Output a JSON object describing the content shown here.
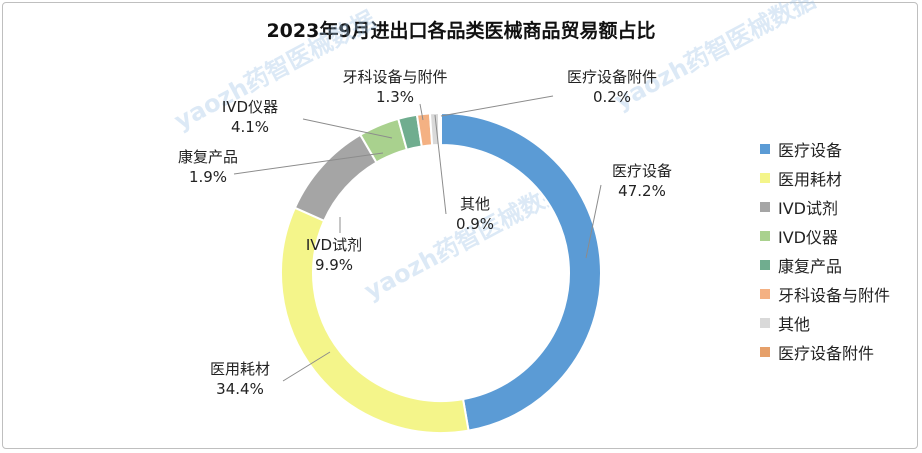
{
  "chart_data": {
    "type": "pie",
    "subtype": "donut",
    "title": "2023年9月进出口各品类医械商品贸易额占比",
    "legend_position": "right",
    "slices": [
      {
        "name": "医疗设备",
        "value": 47.2,
        "label": "47.2%",
        "color": "#5b9bd5"
      },
      {
        "name": "医用耗材",
        "value": 34.4,
        "label": "34.4%",
        "color": "#f4f58a"
      },
      {
        "name": "IVD试剂",
        "value": 9.9,
        "label": "9.9%",
        "color": "#a5a5a5"
      },
      {
        "name": "IVD仪器",
        "value": 4.1,
        "label": "4.1%",
        "color": "#a9d18e"
      },
      {
        "name": "康复产品",
        "value": 1.9,
        "label": "1.9%",
        "color": "#70ad8f"
      },
      {
        "name": "牙科设备与附件",
        "value": 1.3,
        "label": "1.3%",
        "color": "#f4b183"
      },
      {
        "name": "其他",
        "value": 0.9,
        "label": "0.9%",
        "color": "#d9d9d9"
      },
      {
        "name": "医疗设备附件",
        "value": 0.2,
        "label": "0.2%",
        "color": "#e6a06a"
      }
    ]
  },
  "watermark": "yaozh药智医械数据"
}
